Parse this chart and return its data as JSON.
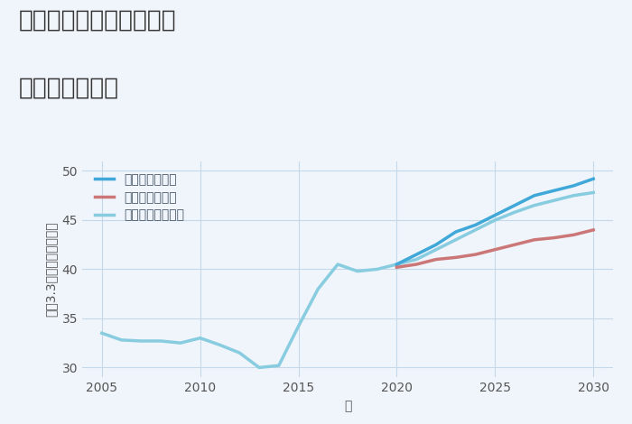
{
  "title_line1": "愛知県春日井市神領町の",
  "title_line2": "土地の価格推移",
  "xlabel": "年",
  "ylabel": "坪（3.3㎡）単価（万円）",
  "xlim": [
    2004,
    2031
  ],
  "ylim": [
    29,
    51
  ],
  "yticks": [
    30,
    35,
    40,
    45,
    50
  ],
  "xticks": [
    2005,
    2010,
    2015,
    2020,
    2025,
    2030
  ],
  "background_color": "#f0f5fb",
  "plot_bg_color": "#f0f5fb",
  "grid_color": "#c5d8ea",
  "normal_scenario": {
    "label": "ノーマルシナリオ",
    "color": "#88cce0",
    "linewidth": 2.5,
    "x": [
      2005,
      2006,
      2007,
      2008,
      2009,
      2010,
      2011,
      2012,
      2013,
      2014,
      2015,
      2016,
      2017,
      2018,
      2019,
      2020,
      2021,
      2022,
      2023,
      2024,
      2025,
      2026,
      2027,
      2028,
      2029,
      2030
    ],
    "y": [
      33.5,
      32.8,
      32.7,
      32.7,
      32.5,
      33.0,
      32.3,
      31.5,
      30.0,
      30.2,
      34.2,
      38.0,
      40.5,
      39.8,
      40.0,
      40.5,
      41.0,
      42.0,
      43.0,
      44.0,
      45.0,
      45.8,
      46.5,
      47.0,
      47.5,
      47.8
    ]
  },
  "good_scenario": {
    "label": "グッドシナリオ",
    "color": "#3fa8d8",
    "linewidth": 2.5,
    "x": [
      2020,
      2021,
      2022,
      2023,
      2024,
      2025,
      2026,
      2027,
      2028,
      2029,
      2030
    ],
    "y": [
      40.5,
      41.5,
      42.5,
      43.8,
      44.5,
      45.5,
      46.5,
      47.5,
      48.0,
      48.5,
      49.2
    ]
  },
  "bad_scenario": {
    "label": "バッドシナリオ",
    "color": "#cc7777",
    "linewidth": 2.5,
    "x": [
      2020,
      2021,
      2022,
      2023,
      2024,
      2025,
      2026,
      2027,
      2028,
      2029,
      2030
    ],
    "y": [
      40.2,
      40.5,
      41.0,
      41.2,
      41.5,
      42.0,
      42.5,
      43.0,
      43.2,
      43.5,
      44.0
    ]
  },
  "title_fontsize": 19,
  "axis_label_fontsize": 10,
  "tick_fontsize": 10,
  "legend_fontsize": 10
}
